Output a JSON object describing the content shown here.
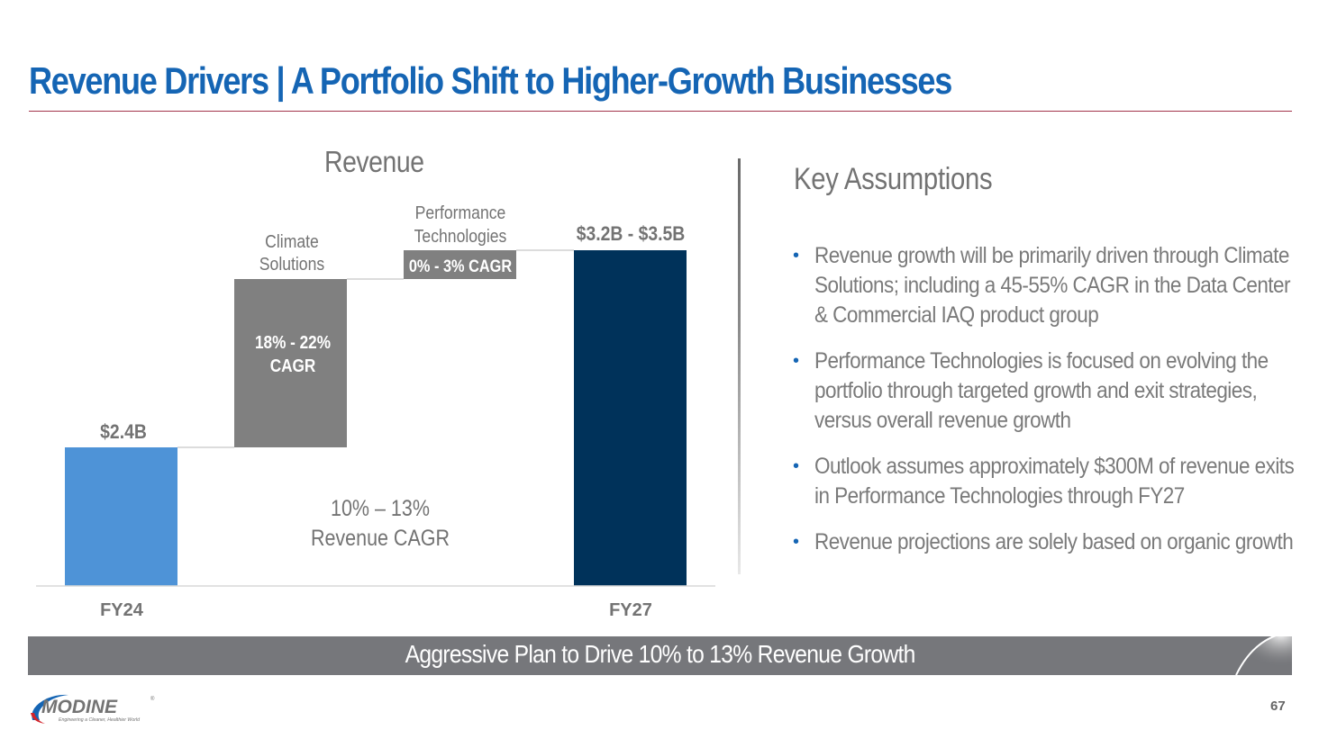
{
  "slide": {
    "title": "Revenue Drivers | A Portfolio Shift to Higher-Growth Businesses",
    "page_number": "67",
    "colors": {
      "title_blue": "#1565b4",
      "title_rule": "#a2334a",
      "fy24_bar": "#4e93d7",
      "segment_bar": "#808080",
      "fy27_bar": "#00325a",
      "text_gray": "#737373",
      "banner_gray": "#76777b"
    }
  },
  "chart_data": {
    "type": "bar",
    "subtype": "waterfall",
    "title": "Revenue",
    "categories": [
      "FY24",
      "Climate Solutions",
      "Performance Technologies",
      "FY27"
    ],
    "x_tick_labels": [
      "FY24",
      "",
      "",
      "FY27"
    ],
    "series": [
      {
        "name": "FY24",
        "kind": "total",
        "value_label": "$2.4B",
        "value_billion": 2.4,
        "color": "#4e93d7"
      },
      {
        "name": "Climate Solutions",
        "kind": "increment",
        "label_lines": [
          "Climate",
          "Solutions"
        ],
        "inner_label_lines": [
          "18% - 22%",
          "CAGR"
        ],
        "color": "#808080"
      },
      {
        "name": "Performance Technologies",
        "kind": "increment",
        "label_lines": [
          "Performance",
          "Technologies"
        ],
        "inner_label_lines": [
          "0% - 3% CAGR"
        ],
        "color": "#808080"
      },
      {
        "name": "FY27",
        "kind": "total",
        "value_label": "$3.2B - $3.5B",
        "value_billion_range": [
          3.2,
          3.5
        ],
        "color": "#00325a"
      }
    ],
    "annotation": [
      "10% – 13%",
      "Revenue CAGR"
    ],
    "xlabel": "",
    "ylabel": "",
    "grid": false,
    "legend": "none"
  },
  "key_assumptions": {
    "title": "Key Assumptions",
    "bullets": [
      "Revenue growth will be primarily driven through Climate Solutions; including a 45-55% CAGR in the Data Center & Commercial IAQ product group",
      "Performance Technologies is focused on evolving the portfolio through targeted growth and exit strategies, versus overall revenue growth",
      "Outlook assumes approximately $300M of revenue exits in Performance Technologies through FY27",
      "Revenue projections are solely based on organic growth"
    ]
  },
  "banner": {
    "text": "Aggressive Plan to Drive 10% to 13% Revenue Growth"
  },
  "logo": {
    "name": "MODINE",
    "tagline": "Engineering a Cleaner, Healthier World",
    "mark": "®"
  }
}
